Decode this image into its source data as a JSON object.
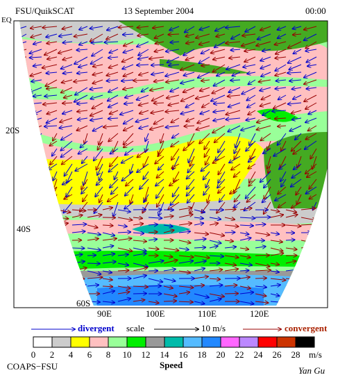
{
  "header": {
    "product": "FSU/QuikSCAT",
    "date": "13 September 2004",
    "time": "00:00"
  },
  "map": {
    "lat_labels": [
      "EQ",
      "20S",
      "40S",
      "60S"
    ],
    "lon_labels": [
      "90E",
      "100E",
      "110E",
      "120E"
    ]
  },
  "legend": {
    "divergent": "divergent",
    "scale": "scale",
    "scale_value": "10 m/s",
    "convergent": "convergent",
    "colorbar": {
      "colors": [
        "#ffffff",
        "#cccccc",
        "#ffff00",
        "#ffc0c0",
        "#99ff99",
        "#00ee00",
        "#999999",
        "#00bbaa",
        "#55bbff",
        "#2288ff",
        "#ff66ff",
        "#bb88ff",
        "#ff0000",
        "#cc3300",
        "#000000"
      ],
      "ticks": [
        0,
        2,
        4,
        6,
        8,
        10,
        12,
        14,
        16,
        18,
        20,
        22,
        24,
        26,
        28
      ],
      "unit": "m/s",
      "title": "Speed"
    }
  },
  "footer": {
    "institution": "COAPS−FSU",
    "author": "Yan Gu"
  }
}
